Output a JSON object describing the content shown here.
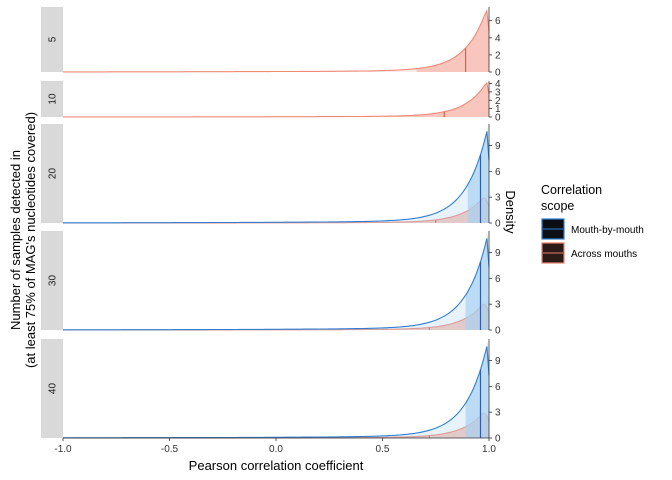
{
  "chart_data": {
    "type": "area",
    "xlabel": "Pearson correlation coefficient",
    "ylabel_lines": [
      "Number of samples detected in",
      "(at least 75% of MAG's nucleotides covered)"
    ],
    "y2label": "Density",
    "x_ticks": [
      "-1.0",
      "-0.5",
      "0.0",
      "0.5",
      "1.0"
    ],
    "xlim": [
      -1.0,
      1.0
    ],
    "legend": {
      "title_lines": [
        "Correlation",
        "scope"
      ],
      "position": "right",
      "items": [
        {
          "label": "Mouth-by-mouth",
          "fill": "#0d0d14",
          "stroke": "#2e7fd4"
        },
        {
          "label": "Across mouths",
          "fill": "#2a1a18",
          "stroke": "#e8806e"
        }
      ]
    },
    "colors": {
      "mouth_line": "#2e7fd4",
      "mouth_fill": "#a9d2f2",
      "across_line": "#ef8a78",
      "across_fill": "#f6b6aa",
      "strip": "#d9d9d9",
      "median_mouth": "#2e5fa8",
      "median_across": "#e35d45"
    },
    "facets": [
      {
        "label": "5",
        "ymax": 7.6,
        "yticks": [
          0,
          2,
          4,
          6
        ],
        "across": {
          "peak_x": 0.985,
          "peak_y": 7.4,
          "median": 0.89,
          "q_low": 0.66
        },
        "mouth": null
      },
      {
        "label": "10",
        "ymax": 4.3,
        "yticks": [
          0,
          1,
          2,
          3,
          4
        ],
        "across": {
          "peak_x": 0.985,
          "peak_y": 4.2,
          "median": 0.79,
          "q_low": 0.51
        },
        "mouth": null
      },
      {
        "label": "20",
        "ymax": 11.5,
        "yticks": [
          0,
          3,
          6,
          9
        ],
        "across": {
          "peak_x": 0.97,
          "peak_y": 3.0,
          "median": 0.75,
          "q_low": 0.44
        },
        "mouth": {
          "peak_x": 0.99,
          "peak_y": 11.2,
          "median": 0.96,
          "q_low": 0.9
        }
      },
      {
        "label": "30",
        "ymax": 11.5,
        "yticks": [
          0,
          3,
          6,
          9
        ],
        "across": {
          "peak_x": 0.97,
          "peak_y": 3.1,
          "median": 0.72,
          "q_low": 0.41
        },
        "mouth": {
          "peak_x": 0.99,
          "peak_y": 11.2,
          "median": 0.96,
          "q_low": 0.89
        }
      },
      {
        "label": "40",
        "ymax": 11.5,
        "yticks": [
          0,
          3,
          6,
          9
        ],
        "across": {
          "peak_x": 0.97,
          "peak_y": 3.0,
          "median": 0.72,
          "q_low": 0.42
        },
        "mouth": {
          "peak_x": 0.99,
          "peak_y": 11.2,
          "median": 0.96,
          "q_low": 0.89
        }
      }
    ]
  }
}
